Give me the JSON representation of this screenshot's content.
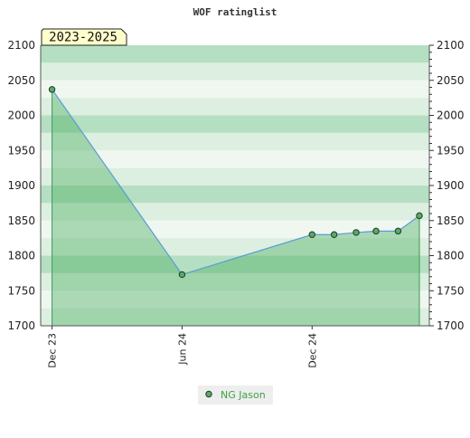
{
  "colors": {
    "band_light": "#f0f7f1",
    "band_medium": "#dcefe0",
    "band_dark": "#b5dfc2",
    "area_fill": "#4caf62",
    "line": "#5b9bd5",
    "marker_fill": "#5ba86a",
    "marker_stroke": "#1f3d25",
    "legend_bg": "#eeeeee",
    "legend_text": "#3aa346",
    "badge_bg": "#ffffcc"
  },
  "chart_data": {
    "type": "area",
    "title": "WOF ratinglist",
    "badge": "2023-2025",
    "xlabel": "",
    "ylabel": "",
    "ylim": [
      1700,
      2100
    ],
    "yticks": [
      1700,
      1750,
      1800,
      1850,
      1900,
      1950,
      2000,
      2050,
      2100
    ],
    "xlim": [
      "2023-11-15",
      "2025-05-15"
    ],
    "xticks": [
      {
        "date": "2023-12-01",
        "label": "Dec 23"
      },
      {
        "date": "2024-06-01",
        "label": "Jun 24"
      },
      {
        "date": "2024-12-01",
        "label": "Dec 24"
      }
    ],
    "grid": true,
    "legend_position": "bottom-center",
    "series": [
      {
        "name": "NG Jason",
        "points": [
          {
            "x": "2023-12-01",
            "y": 2037
          },
          {
            "x": "2024-06-01",
            "y": 1773
          },
          {
            "x": "2024-12-01",
            "y": 1830
          },
          {
            "x": "2025-01-01",
            "y": 1830
          },
          {
            "x": "2025-02-01",
            "y": 1833
          },
          {
            "x": "2025-03-01",
            "y": 1835
          },
          {
            "x": "2025-04-01",
            "y": 1835
          },
          {
            "x": "2025-05-01",
            "y": 1857
          }
        ]
      }
    ]
  }
}
